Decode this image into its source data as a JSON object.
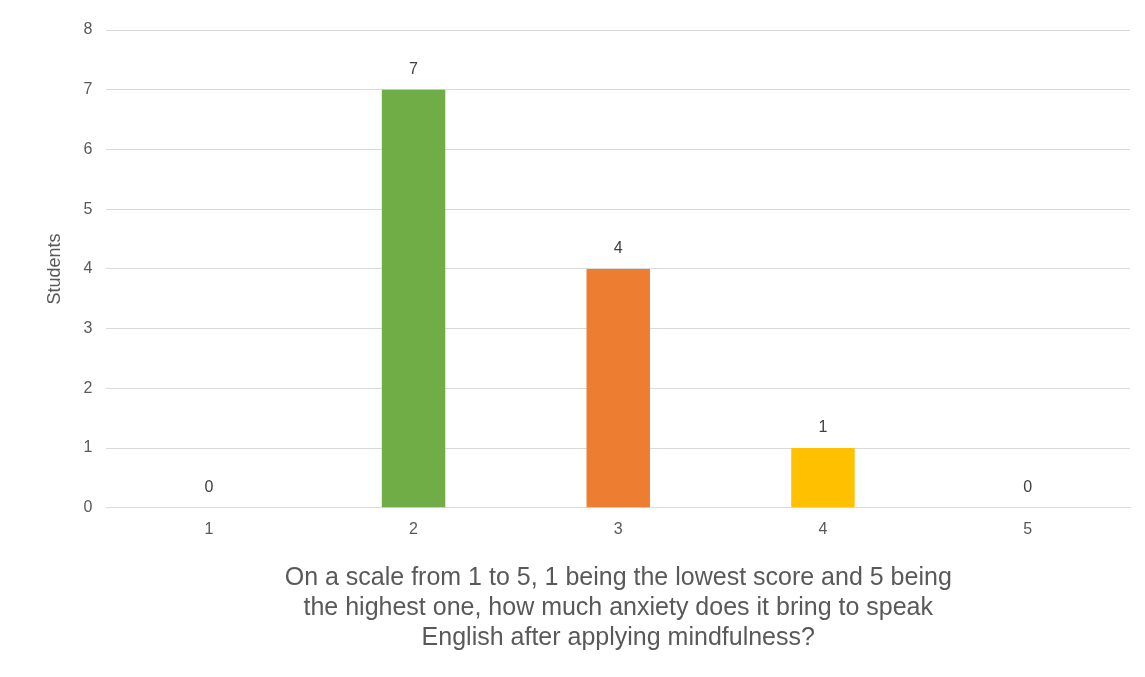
{
  "chart_data": {
    "type": "bar",
    "xlabel": "On a scale from 1 to 5, 1 being the lowest score and 5 being the highest one, how much anxiety does it bring to speak English after applying mindfulness?",
    "ylabel": "Students",
    "categories": [
      "1",
      "2",
      "3",
      "4",
      "5"
    ],
    "values": [
      0,
      7,
      4,
      1,
      0
    ],
    "colors": [
      "#4472c4",
      "#70ad47",
      "#ed7d31",
      "#ffc000",
      "#5b9bd5"
    ],
    "ylim": [
      0,
      8
    ],
    "yticks": [
      0,
      1,
      2,
      3,
      4,
      5,
      6,
      7,
      8
    ],
    "grid": "y",
    "data_labels": true
  }
}
